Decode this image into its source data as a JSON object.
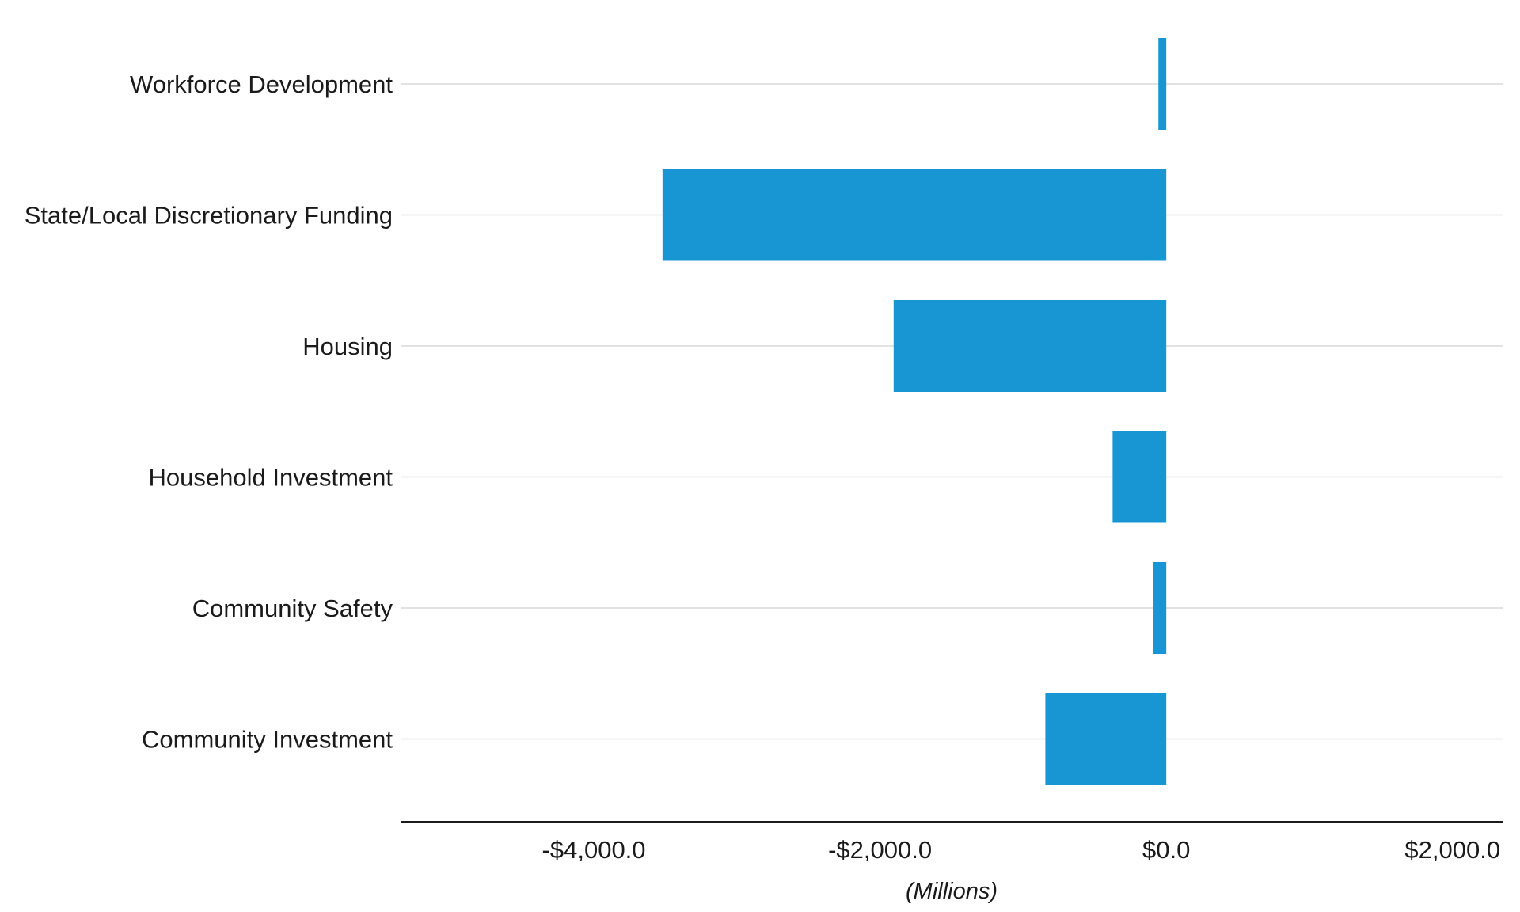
{
  "chart_data": {
    "type": "bar",
    "orientation": "horizontal",
    "categories": [
      "Workforce Development",
      "State/Local Discretionary Funding",
      "Housing",
      "Household Investment",
      "Community Safety",
      "Community Investment"
    ],
    "values": [
      -55,
      -3520,
      -1905,
      -375,
      -95,
      -845
    ],
    "title": "",
    "xlabel": "(Millions)",
    "ylabel": "",
    "xlim": [
      -5350,
      2350
    ],
    "xticks": [
      -4000,
      -2000,
      0,
      2000
    ],
    "xtick_labels": [
      "-$4,000.0",
      "-$2,000.0",
      "$0.0",
      "$2,000.0"
    ],
    "grid": "horizontal",
    "bar_color": "#1896d3"
  }
}
